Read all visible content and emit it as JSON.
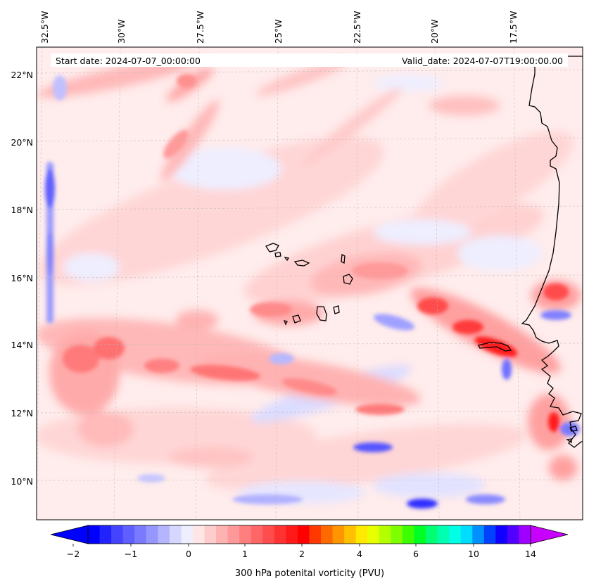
{
  "map": {
    "start_label": "Start date: 2024-07-07_00:00:00",
    "valid_label": "Valid_date: 2024-07-07T19:00:00.00",
    "lon_labels": [
      "32.5°W",
      "30°W",
      "27.5°W",
      "25°W",
      "22.5°W",
      "20°W",
      "17.5°W"
    ],
    "lat_labels": [
      "22°N",
      "20°N",
      "18°N",
      "16°N",
      "14°N",
      "12°N",
      "10°N"
    ],
    "gridlines": true,
    "coastline_color": "#000000",
    "background_color": "#ffecec"
  },
  "colorbar": {
    "label": "300 hPa potenital vorticity (PVU)",
    "ticks": [
      "−2",
      "−1",
      "0",
      "1",
      "2",
      "4",
      "6",
      "10",
      "14"
    ],
    "extend": "both",
    "colors": [
      "#0000ff",
      "#2222ff",
      "#4444ff",
      "#5f5fff",
      "#7a7aff",
      "#9696ff",
      "#b5b5ff",
      "#d6d6ff",
      "#eeeeff",
      "#ffe6e6",
      "#ffcccc",
      "#ffb2b2",
      "#ff9999",
      "#ff7f7f",
      "#ff6666",
      "#ff4c4c",
      "#ff3232",
      "#ff1919",
      "#ff0000",
      "#ff3800",
      "#ff6a00",
      "#ff9600",
      "#ffc000",
      "#ffe900",
      "#e8ff00",
      "#b3ff00",
      "#7dff00",
      "#3cff00",
      "#00ff25",
      "#00ff72",
      "#00ffb0",
      "#00ffe4",
      "#00dcff",
      "#0090ff",
      "#0040ff",
      "#1000ff",
      "#5000ff",
      "#a000ff"
    ],
    "under_color": "#0000ff",
    "over_color": "#c800ff"
  }
}
